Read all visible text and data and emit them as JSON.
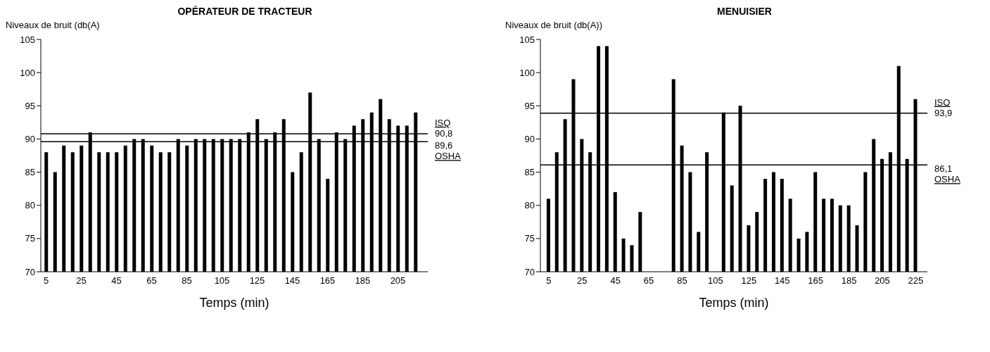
{
  "chart_data": [
    {
      "type": "bar",
      "title": "OPÉRATEUR DE TRACTEUR",
      "ylabel": "Niveaux de bruit (db(A)",
      "xlabel": "Temps (min)",
      "color": "#000000",
      "x": [
        5,
        10,
        15,
        20,
        25,
        30,
        35,
        40,
        45,
        50,
        55,
        60,
        65,
        70,
        75,
        80,
        85,
        90,
        95,
        100,
        105,
        110,
        115,
        120,
        125,
        130,
        135,
        140,
        145,
        150,
        155,
        160,
        165,
        170,
        175,
        180,
        185,
        190,
        195,
        200,
        205,
        210,
        215
      ],
      "values": [
        88,
        85,
        89,
        88,
        89,
        91,
        88,
        88,
        88,
        89,
        90,
        90,
        89,
        88,
        88,
        90,
        89,
        90,
        90,
        90,
        90,
        90,
        90,
        91,
        93,
        90,
        91,
        93,
        85,
        88,
        97,
        90,
        84,
        91,
        90,
        92,
        93,
        94,
        96,
        93,
        92,
        92,
        94
      ],
      "xlim": [
        2,
        222
      ],
      "xticks": [
        5,
        25,
        45,
        65,
        85,
        105,
        125,
        145,
        165,
        185,
        205
      ],
      "ylim": [
        70,
        105
      ],
      "yticks": [
        70,
        75,
        80,
        85,
        90,
        95,
        100,
        105
      ],
      "ref_lines": [
        {
          "axis": "y",
          "value": 90.8,
          "label": "ISQ\n90,8",
          "color": "#000000"
        },
        {
          "axis": "y",
          "value": 89.6,
          "label": "89,6\nOSHA",
          "color": "#000000"
        }
      ]
    },
    {
      "type": "bar",
      "title": "MENUISIER",
      "ylabel": "Niveaux de bruit (db(A))",
      "xlabel": "Temps (min)",
      "color": "#000000",
      "x": [
        5,
        10,
        15,
        20,
        25,
        30,
        35,
        40,
        45,
        50,
        55,
        60,
        80,
        85,
        90,
        95,
        100,
        110,
        115,
        120,
        125,
        130,
        135,
        140,
        145,
        150,
        155,
        160,
        165,
        170,
        175,
        180,
        185,
        190,
        195,
        200,
        205,
        210,
        215,
        220,
        225
      ],
      "values": [
        81,
        88,
        93,
        99,
        90,
        88,
        104,
        104,
        82,
        75,
        74,
        79,
        99,
        89,
        85,
        76,
        88,
        94,
        83,
        95,
        77,
        79,
        84,
        85,
        84,
        81,
        75,
        76,
        85,
        81,
        81,
        80,
        80,
        77,
        85,
        90,
        87,
        88,
        101,
        87,
        96
      ],
      "xlim": [
        0,
        232
      ],
      "xticks": [
        5,
        25,
        45,
        65,
        85,
        105,
        125,
        145,
        165,
        185,
        205,
        225
      ],
      "ylim": [
        70,
        105
      ],
      "yticks": [
        70,
        75,
        80,
        85,
        90,
        95,
        100,
        105
      ],
      "ref_lines": [
        {
          "axis": "y",
          "value": 93.9,
          "label": "ISO\n93,9",
          "color": "#000000"
        },
        {
          "axis": "y",
          "value": 86.1,
          "label": "86,1\nOSHA",
          "color": "#000000"
        }
      ]
    }
  ]
}
